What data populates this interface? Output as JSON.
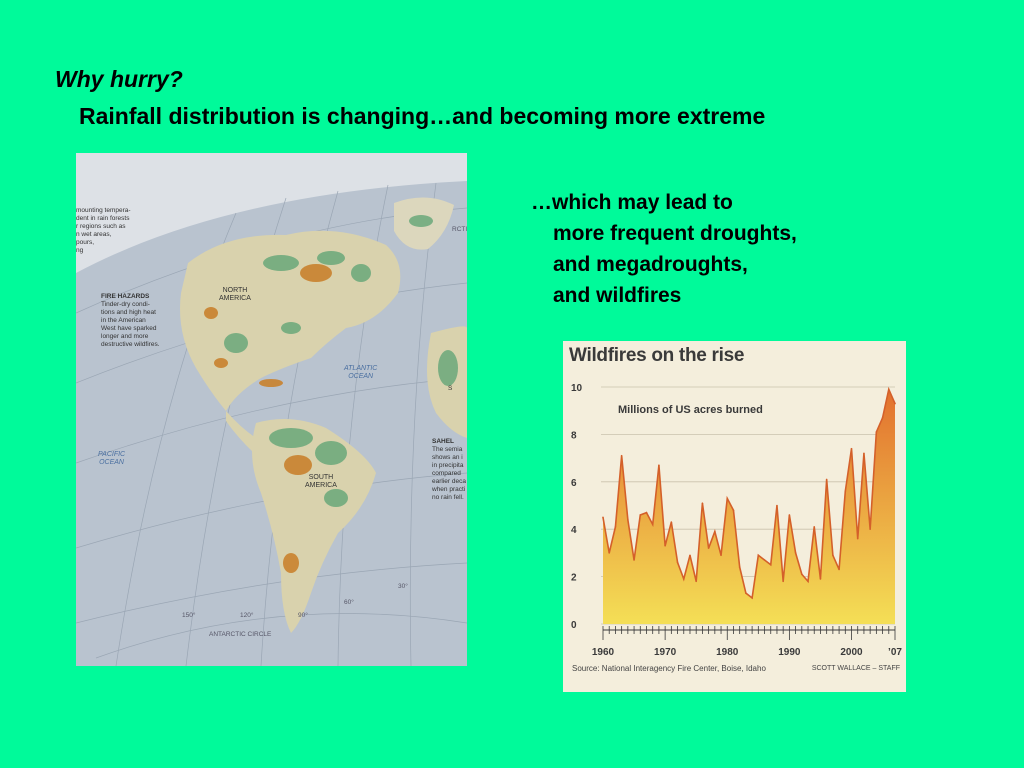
{
  "slide": {
    "title": "Why hurry?",
    "subtitle": "Rainfall distribution is changing…and becoming more extreme",
    "bullets": [
      "…which may lead to",
      "more frequent droughts,",
      "and megadroughts,",
      "and wildfires"
    ]
  },
  "map": {
    "intro_lines": [
      "mounting tempera-",
      "dent in rain forests",
      "r regions such as",
      "n wet areas,",
      "pours,",
      "ng"
    ],
    "fire_heading": "FIRE HAZARDS",
    "fire_lines": [
      "Tinder-dry condi-",
      "tions and high heat",
      "in the American",
      "West have sparked",
      "longer and more",
      "destructive wildfires."
    ],
    "sahel_heading": "SAHEL",
    "sahel_lines": [
      "The semia",
      "shows an i",
      "in precipita",
      "compared",
      "earlier deca",
      "when practi",
      "no rain fell."
    ],
    "north_america": [
      "NORTH",
      "AMERICA"
    ],
    "south_america": [
      "SOUTH",
      "AMERICA"
    ],
    "atlantic": [
      "ATLANTIC",
      "OCEAN"
    ],
    "pacific": [
      "PACIFIC",
      "OCEAN"
    ],
    "antarctic_circle": "ANTARCTIC CIRCLE",
    "arctic": "RCTI",
    "longitudes": [
      "150°",
      "120°",
      "90°",
      "60°",
      "30°"
    ],
    "small_mark": "S"
  },
  "chart": {
    "title": "Wildfires on the rise",
    "ylabel": "Millions of US acres burned",
    "source": "Source: National Interagency Fire Center, Boise, Idaho",
    "credit": "SCOTT WALLACE – STAFF",
    "colors": {
      "fill_top": "#e2702e",
      "fill_bottom": "#f4df56",
      "line": "#d4602a",
      "background": "#f4eedc"
    }
  },
  "chart_data": {
    "type": "area",
    "title": "Wildfires on the rise",
    "ylabel": "Millions of US acres burned",
    "x": [
      1960,
      1961,
      1962,
      1963,
      1964,
      1965,
      1966,
      1967,
      1968,
      1969,
      1970,
      1971,
      1972,
      1973,
      1974,
      1975,
      1976,
      1977,
      1978,
      1979,
      1980,
      1981,
      1982,
      1983,
      1984,
      1985,
      1986,
      1987,
      1988,
      1989,
      1990,
      1991,
      1992,
      1993,
      1994,
      1995,
      1996,
      1997,
      1998,
      1999,
      2000,
      2001,
      2002,
      2003,
      2004,
      2005,
      2006,
      2007
    ],
    "values": [
      4.5,
      3.0,
      4.1,
      7.1,
      4.4,
      2.7,
      4.6,
      4.7,
      4.2,
      6.7,
      3.3,
      4.3,
      2.6,
      1.9,
      2.9,
      1.8,
      5.1,
      3.2,
      3.9,
      2.9,
      5.3,
      4.8,
      2.4,
      1.3,
      1.1,
      2.9,
      2.7,
      2.5,
      5.0,
      1.8,
      4.6,
      3.0,
      2.1,
      1.8,
      4.1,
      1.9,
      6.1,
      2.9,
      2.3,
      5.6,
      7.4,
      3.6,
      7.2,
      4.0,
      8.1,
      8.7,
      9.9,
      9.3
    ],
    "xtick_labels": [
      "1960",
      "1970",
      "1980",
      "1990",
      "2000",
      "’07"
    ],
    "ytick_labels": [
      "0",
      "2",
      "4",
      "6",
      "8",
      "10"
    ],
    "ylim": [
      0,
      10
    ],
    "grid": true
  }
}
